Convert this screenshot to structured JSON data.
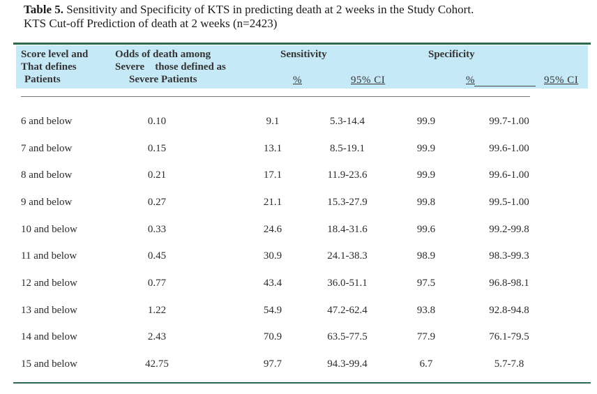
{
  "caption": {
    "label": "Table 5.",
    "line1_rest": " Sensitivity and Specificity of KTS in predicting death at 2 weeks in the Study Cohort.",
    "line2": "KTS Cut-off Prediction of death at 2 weeks (n=2423)"
  },
  "headers": {
    "score_l1": "Score level and",
    "score_l2": "That defines",
    "score_l3": "Patients",
    "odds_l1": "Odds of death among",
    "odds_l2": "Severe    those defined as",
    "odds_l3": "Severe Patients",
    "sensitivity": "Sensitivity",
    "specificity": "Specificity",
    "sens_pct": "%",
    "sens_ci": "95% CI",
    "spec_pct": "%",
    "spec_ci": "95% CI"
  },
  "rows": [
    {
      "score": "6 and below",
      "odds": "0.10",
      "sens": "9.1",
      "sens_ci": "5.3-14.4",
      "spec": "99.9",
      "spec_ci": "99.7-1.00"
    },
    {
      "score": "7 and below",
      "odds": "0.15",
      "sens": "13.1",
      "sens_ci": "8.5-19.1",
      "spec": "99.9",
      "spec_ci": "99.6-1.00"
    },
    {
      "score": "8 and below",
      "odds": "0.21",
      "sens": "17.1",
      "sens_ci": "11.9-23.6",
      "spec": "99.9",
      "spec_ci": "99.6-1.00"
    },
    {
      "score": "9 and below",
      "odds": "0.27",
      "sens": "21.1",
      "sens_ci": "15.3-27.9",
      "spec": "99.8",
      "spec_ci": "99.5-1.00"
    },
    {
      "score": "10 and below",
      "odds": "0.33",
      "sens": "24.6",
      "sens_ci": "18.4-31.6",
      "spec": "99.6",
      "spec_ci": "99.2-99.8"
    },
    {
      "score": "11 and below",
      "odds": "0.45",
      "sens": "30.9",
      "sens_ci": "24.1-38.3",
      "spec": "98.9",
      "spec_ci": "98.3-99.3"
    },
    {
      "score": "12 and below",
      "odds": "0.77",
      "sens": "43.4",
      "sens_ci": "36.0-51.1",
      "spec": "97.5",
      "spec_ci": "96.8-98.1"
    },
    {
      "score": "13 and below",
      "odds": "1.22",
      "sens": "54.9",
      "sens_ci": "47.2-62.4",
      "spec": "93.8",
      "spec_ci": "92.8-94.8"
    },
    {
      "score": "14 and below",
      "odds": "2.43",
      "sens": "70.9",
      "sens_ci": "63.5-77.5",
      "spec": "77.9",
      "spec_ci": "76.1-79.5"
    },
    {
      "score": "15 and below",
      "odds": "42.75",
      "sens": "97.7",
      "sens_ci": "94.3-99.4",
      "spec": "6.7",
      "spec_ci": "5.7-7.8"
    }
  ],
  "colors": {
    "header_band": "#c6e9f7",
    "rule": "#2d6a4f"
  }
}
